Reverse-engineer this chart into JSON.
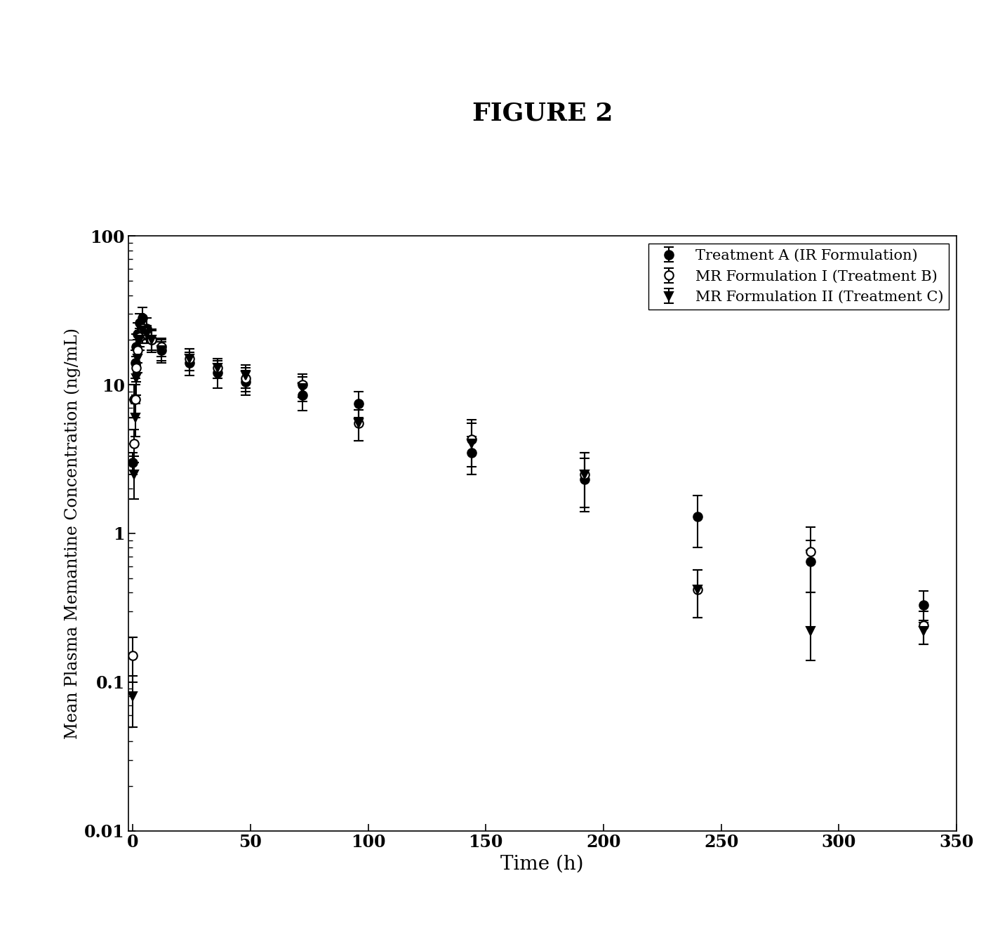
{
  "title": "FIGURE 2",
  "xlabel": "Time (h)",
  "ylabel": "Mean Plasma Memantine Concentration (ng/mL)",
  "ylim": [
    0.01,
    100
  ],
  "xlim": [
    -2,
    350
  ],
  "xticks": [
    0,
    50,
    100,
    150,
    200,
    250,
    300,
    350
  ],
  "treatment_A": {
    "label": "Treatment A (IR Formulation)",
    "marker": "o",
    "fillstyle": "full",
    "x": [
      0,
      0.5,
      1,
      1.5,
      2,
      3,
      4,
      6,
      8,
      12,
      24,
      36,
      48,
      72,
      96,
      144,
      192,
      240,
      288,
      336
    ],
    "y": [
      3.0,
      8.0,
      14.0,
      18.0,
      22.0,
      26.0,
      28.0,
      24.0,
      20.0,
      17.0,
      14.0,
      12.0,
      10.5,
      8.5,
      7.5,
      3.5,
      2.3,
      1.3,
      0.65,
      0.33
    ],
    "yerr_lo": [
      0.5,
      2.0,
      3.0,
      4.0,
      4.0,
      4.0,
      5.0,
      4.0,
      3.5,
      3.0,
      2.5,
      2.5,
      2.0,
      1.8,
      1.5,
      1.0,
      0.9,
      0.5,
      0.25,
      0.08
    ],
    "yerr_hi": [
      0.5,
      2.0,
      3.0,
      4.0,
      4.0,
      4.0,
      5.0,
      4.0,
      3.5,
      3.0,
      2.5,
      2.5,
      2.0,
      1.8,
      1.5,
      1.0,
      0.9,
      0.5,
      0.25,
      0.08
    ]
  },
  "treatment_B": {
    "label": "MR Formulation I (Treatment B)",
    "marker": "o",
    "fillstyle": "none",
    "x": [
      0,
      0.5,
      1,
      1.5,
      2,
      3,
      4,
      6,
      8,
      12,
      24,
      36,
      48,
      72,
      96,
      144,
      192,
      240,
      288,
      336
    ],
    "y": [
      0.15,
      4.0,
      8.0,
      13.0,
      17.0,
      21.0,
      24.0,
      22.0,
      20.0,
      18.0,
      15.0,
      13.0,
      11.0,
      10.0,
      5.5,
      4.3,
      2.5,
      0.42,
      0.75,
      0.24
    ],
    "yerr_lo": [
      0.05,
      1.0,
      2.0,
      2.5,
      3.0,
      3.0,
      3.5,
      3.0,
      3.0,
      2.5,
      2.5,
      2.0,
      2.0,
      1.8,
      1.3,
      1.5,
      1.0,
      0.15,
      0.35,
      0.06
    ],
    "yerr_hi": [
      0.05,
      1.0,
      2.0,
      2.5,
      3.0,
      3.0,
      3.5,
      3.0,
      3.0,
      2.5,
      2.5,
      2.0,
      2.0,
      1.8,
      1.3,
      1.5,
      1.0,
      0.15,
      0.35,
      0.06
    ]
  },
  "treatment_C": {
    "label": "MR Formulation II (Treatment C)",
    "marker": "v",
    "fillstyle": "full",
    "x": [
      0,
      0.5,
      1,
      1.5,
      2,
      3,
      4,
      6,
      8,
      12,
      24,
      36,
      48,
      72,
      96,
      144,
      192,
      240,
      288,
      336
    ],
    "y": [
      0.08,
      2.5,
      6.0,
      11.0,
      15.0,
      20.0,
      23.0,
      22.0,
      20.0,
      17.0,
      15.0,
      13.0,
      11.5,
      9.5,
      5.5,
      4.0,
      2.5,
      0.42,
      0.22,
      0.22
    ],
    "yerr_lo": [
      0.03,
      0.8,
      1.5,
      2.5,
      3.0,
      3.0,
      4.0,
      3.0,
      3.0,
      2.5,
      2.5,
      2.0,
      2.0,
      1.8,
      1.3,
      1.5,
      1.0,
      0.15,
      0.08,
      0.04
    ],
    "yerr_hi": [
      0.03,
      0.8,
      1.5,
      2.5,
      3.0,
      3.0,
      4.0,
      3.0,
      3.0,
      2.5,
      2.5,
      2.0,
      2.0,
      1.8,
      1.3,
      1.5,
      1.0,
      0.15,
      0.55,
      0.04
    ]
  }
}
